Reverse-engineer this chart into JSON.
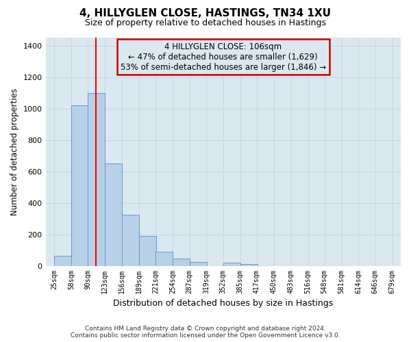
{
  "title": "4, HILLYGLEN CLOSE, HASTINGS, TN34 1XU",
  "subtitle": "Size of property relative to detached houses in Hastings",
  "xlabel": "Distribution of detached houses by size in Hastings",
  "ylabel": "Number of detached properties",
  "footer_line1": "Contains HM Land Registry data © Crown copyright and database right 2024.",
  "footer_line2": "Contains public sector information licensed under the Open Government Licence v3.0.",
  "annotation_line1": "4 HILLYGLEN CLOSE: 106sqm",
  "annotation_line2": "← 47% of detached houses are smaller (1,629)",
  "annotation_line3": "53% of semi-detached houses are larger (1,846) →",
  "bin_starts": [
    25,
    58,
    90,
    123,
    156,
    189,
    221,
    254,
    287,
    319,
    352,
    385,
    417,
    450,
    483,
    516,
    548,
    581,
    614,
    646
  ],
  "bin_width": 33,
  "bar_heights": [
    65,
    1020,
    1100,
    650,
    325,
    190,
    90,
    48,
    25,
    0,
    18,
    10,
    0,
    0,
    0,
    0,
    0,
    0,
    0,
    0
  ],
  "tick_labels": [
    "25sqm",
    "58sqm",
    "90sqm",
    "123sqm",
    "156sqm",
    "189sqm",
    "221sqm",
    "254sqm",
    "287sqm",
    "319sqm",
    "352sqm",
    "385sqm",
    "417sqm",
    "450sqm",
    "483sqm",
    "516sqm",
    "548sqm",
    "581sqm",
    "614sqm",
    "646sqm",
    "679sqm"
  ],
  "tick_positions": [
    25,
    58,
    90,
    123,
    156,
    189,
    221,
    254,
    287,
    319,
    352,
    385,
    417,
    450,
    483,
    516,
    548,
    581,
    614,
    646,
    679
  ],
  "bar_color": "#b8d0e8",
  "bar_edge_color": "#6699cc",
  "red_line_x": 106,
  "ylim": [
    0,
    1450
  ],
  "xlim": [
    25,
    679
  ],
  "yticks": [
    0,
    200,
    400,
    600,
    800,
    1000,
    1200,
    1400
  ],
  "annotation_box_color": "#cc0000",
  "grid_color": "#c8d8e8",
  "plot_bg_color": "#dce8f0",
  "fig_bg_color": "#ffffff"
}
